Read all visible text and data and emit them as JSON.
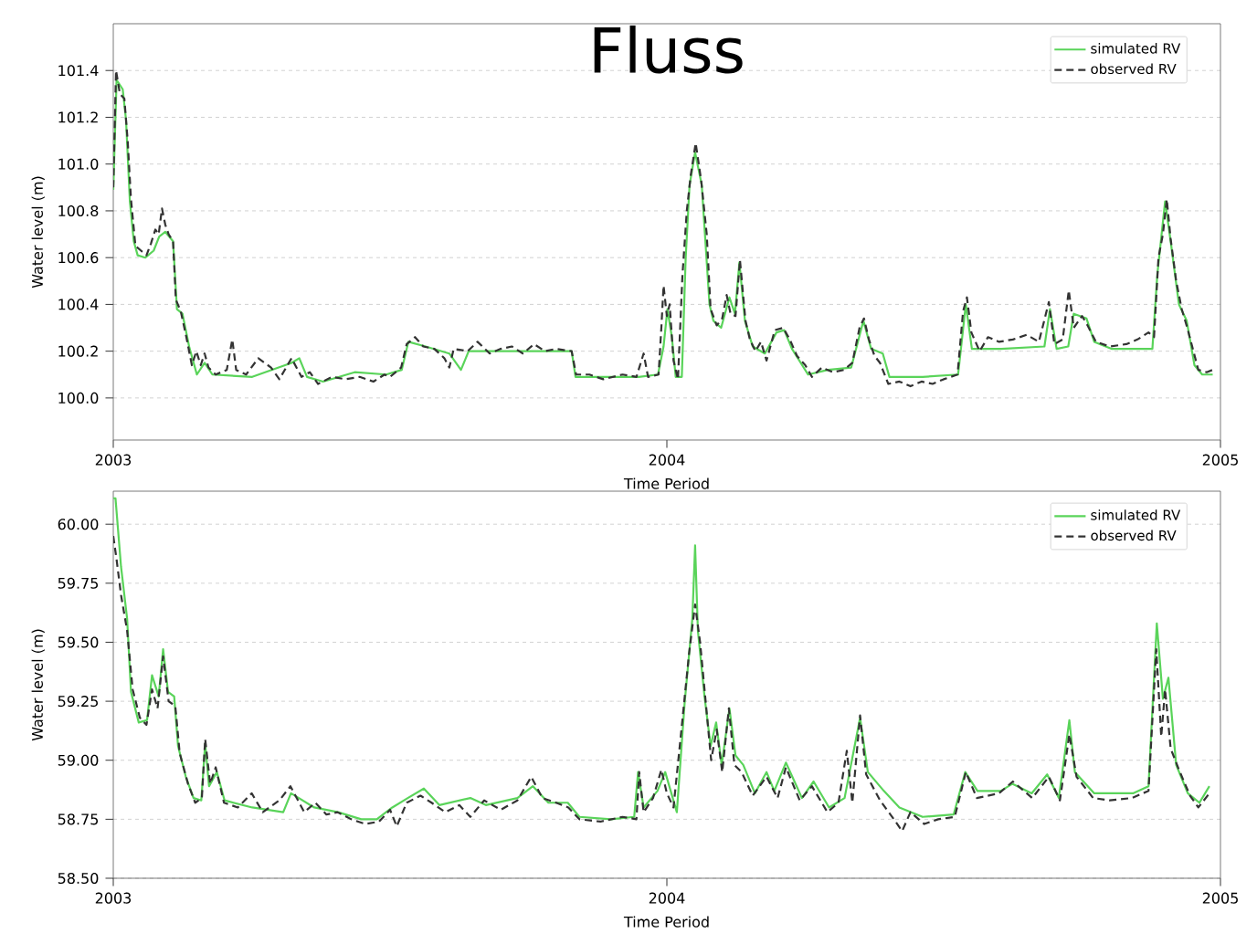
{
  "chart_data": [
    {
      "type": "line",
      "title": "Fluss",
      "xlabel": "Time Period",
      "ylabel": "Water level (m)",
      "xlim": [
        2003,
        2005
      ],
      "xticks": [
        2003,
        2004,
        2005
      ],
      "ylim": [
        99.82,
        101.6
      ],
      "yticks": [
        {
          "value": 100.0,
          "label": "100.0"
        },
        {
          "value": 100.2,
          "label": "100.2"
        },
        {
          "value": 100.4,
          "label": "100.4"
        },
        {
          "value": 100.6,
          "label": "100.6"
        },
        {
          "value": 100.8,
          "label": "100.8"
        },
        {
          "value": 101.0,
          "label": "101.0"
        },
        {
          "value": 101.2,
          "label": "101.2"
        },
        {
          "value": 101.4,
          "label": "101.4"
        }
      ],
      "grid": "y",
      "legend": "top right",
      "marker": "none",
      "series": [
        {
          "name": "simulated RV",
          "color": "#5ad45a",
          "line_style": "solid",
          "x": [
            2003.0,
            2003.006,
            2003.017,
            2003.023,
            2003.03,
            2003.037,
            2003.044,
            2003.058,
            2003.073,
            2003.083,
            2003.094,
            2003.108,
            2003.115,
            2003.125,
            2003.137,
            2003.151,
            2003.165,
            2003.179,
            2003.251,
            2003.322,
            2003.336,
            2003.35,
            2003.379,
            2003.436,
            2003.493,
            2003.521,
            2003.533,
            2003.564,
            2003.607,
            2003.628,
            2003.642,
            2003.749,
            2003.828,
            2003.835,
            2003.892,
            2003.949,
            2003.984,
            2003.994,
            2004.001,
            2004.009,
            2004.016,
            2004.027,
            2004.034,
            2004.041,
            2004.051,
            2004.063,
            2004.077,
            2004.084,
            2004.098,
            2004.113,
            2004.123,
            2004.131,
            2004.141,
            2004.155,
            2004.177,
            2004.198,
            2004.212,
            2004.226,
            2004.255,
            2004.291,
            2004.333,
            2004.355,
            2004.369,
            2004.39,
            2004.402,
            2004.462,
            2004.526,
            2004.54,
            2004.551,
            2004.604,
            2004.682,
            2004.692,
            2004.704,
            2004.725,
            2004.735,
            2004.758,
            2004.772,
            2004.803,
            2004.877,
            2004.886,
            2004.9,
            2004.91,
            2004.925,
            2004.939,
            2004.953,
            2004.967,
            2004.986
          ],
          "values": [
            100.89,
            101.36,
            101.32,
            101.19,
            100.84,
            100.67,
            100.61,
            100.6,
            100.63,
            100.69,
            100.71,
            100.67,
            100.38,
            100.36,
            100.22,
            100.1,
            100.15,
            100.1,
            100.09,
            100.15,
            100.17,
            100.09,
            100.07,
            100.11,
            100.1,
            100.12,
            100.24,
            100.22,
            100.19,
            100.12,
            100.2,
            100.2,
            100.2,
            100.09,
            100.09,
            100.09,
            100.1,
            100.22,
            100.38,
            100.26,
            100.09,
            100.09,
            100.6,
            100.91,
            101.05,
            100.91,
            100.4,
            100.33,
            100.3,
            100.43,
            100.36,
            100.58,
            100.33,
            100.22,
            100.19,
            100.28,
            100.29,
            100.21,
            100.1,
            100.12,
            100.13,
            100.33,
            100.21,
            100.19,
            100.09,
            100.09,
            100.1,
            100.4,
            100.21,
            100.21,
            100.22,
            100.38,
            100.21,
            100.22,
            100.36,
            100.34,
            100.24,
            100.21,
            100.21,
            100.53,
            100.84,
            100.67,
            100.4,
            100.33,
            100.14,
            100.1,
            100.1
          ]
        },
        {
          "name": "observed RV",
          "color": "#333333",
          "line_style": "dashed",
          "x": [
            2003.0,
            2003.005,
            2003.012,
            2003.02,
            2003.026,
            2003.032,
            2003.04,
            2003.05,
            2003.06,
            2003.068,
            2003.076,
            2003.082,
            2003.088,
            2003.094,
            2003.1,
            2003.108,
            2003.113,
            2003.122,
            2003.132,
            2003.142,
            2003.15,
            2003.158,
            2003.165,
            2003.172,
            2003.185,
            2003.205,
            2003.215,
            2003.222,
            2003.24,
            2003.262,
            2003.285,
            2003.3,
            2003.322,
            2003.34,
            2003.355,
            2003.37,
            2003.395,
            2003.42,
            2003.445,
            2003.47,
            2003.49,
            2003.5,
            2003.52,
            2003.53,
            2003.545,
            2003.56,
            2003.58,
            2003.598,
            2003.607,
            2003.615,
            2003.64,
            2003.658,
            2003.68,
            2003.7,
            2003.72,
            2003.74,
            2003.76,
            2003.78,
            2003.8,
            2003.828,
            2003.836,
            2003.86,
            2003.885,
            2003.92,
            2003.945,
            2003.958,
            2003.966,
            2003.985,
            2003.99,
            2003.994,
            2004.0,
            2004.005,
            2004.012,
            2004.02,
            2004.028,
            2004.036,
            2004.043,
            2004.052,
            2004.062,
            2004.072,
            2004.079,
            2004.09,
            2004.1,
            2004.108,
            2004.115,
            2004.124,
            2004.132,
            2004.142,
            2004.15,
            2004.16,
            2004.17,
            2004.18,
            2004.195,
            2004.21,
            2004.222,
            2004.235,
            2004.25,
            2004.262,
            2004.28,
            2004.3,
            2004.32,
            2004.335,
            2004.348,
            2004.356,
            2004.365,
            2004.375,
            2004.385,
            2004.4,
            2004.42,
            2004.44,
            2004.46,
            2004.48,
            2004.5,
            2004.525,
            2004.535,
            2004.542,
            2004.55,
            2004.565,
            2004.58,
            2004.6,
            2004.625,
            2004.65,
            2004.672,
            2004.69,
            2004.7,
            2004.715,
            2004.726,
            2004.735,
            2004.75,
            2004.76,
            2004.775,
            2004.8,
            2004.83,
            2004.85,
            2004.87,
            2004.88,
            2004.888,
            2004.896,
            2004.903,
            2004.91,
            2004.92,
            2004.93,
            2004.94,
            2004.95,
            2004.96,
            2004.975,
            2004.986
          ],
          "values": [
            100.9,
            101.4,
            101.3,
            101.28,
            101.1,
            100.85,
            100.65,
            100.63,
            100.61,
            100.66,
            100.72,
            100.7,
            100.81,
            100.74,
            100.7,
            100.67,
            100.42,
            100.37,
            100.26,
            100.14,
            100.2,
            100.14,
            100.19,
            100.13,
            100.1,
            100.12,
            100.25,
            100.12,
            100.1,
            100.17,
            100.13,
            100.08,
            100.17,
            100.09,
            100.11,
            100.06,
            100.09,
            100.08,
            100.09,
            100.07,
            100.1,
            100.09,
            100.13,
            100.23,
            100.26,
            100.22,
            100.21,
            100.17,
            100.13,
            100.21,
            100.2,
            100.24,
            100.19,
            100.21,
            100.22,
            100.19,
            100.23,
            100.2,
            100.21,
            100.2,
            100.1,
            100.1,
            100.08,
            100.1,
            100.09,
            100.19,
            100.09,
            100.1,
            100.3,
            100.48,
            100.35,
            100.4,
            100.16,
            100.08,
            100.52,
            100.8,
            100.95,
            101.09,
            100.93,
            100.7,
            100.38,
            100.31,
            100.34,
            100.44,
            100.36,
            100.35,
            100.59,
            100.33,
            100.25,
            100.2,
            100.24,
            100.16,
            100.29,
            100.3,
            100.25,
            100.18,
            100.14,
            100.09,
            100.13,
            100.11,
            100.12,
            100.15,
            100.3,
            100.34,
            100.25,
            100.18,
            100.15,
            100.06,
            100.07,
            100.05,
            100.07,
            100.06,
            100.08,
            100.1,
            100.37,
            100.43,
            100.28,
            100.2,
            100.26,
            100.24,
            100.25,
            100.27,
            100.24,
            100.41,
            100.23,
            100.25,
            100.46,
            100.3,
            100.35,
            100.31,
            100.24,
            100.22,
            100.23,
            100.25,
            100.28,
            100.26,
            100.6,
            100.7,
            100.85,
            100.68,
            100.5,
            100.38,
            100.3,
            100.21,
            100.12,
            100.11,
            100.12
          ]
        }
      ]
    },
    {
      "type": "line",
      "xlabel": "Time Period",
      "ylabel": "Water level (m)",
      "xlim": [
        2003,
        2005
      ],
      "xticks": [
        2003,
        2004,
        2005
      ],
      "ylim": [
        58.5,
        60.14
      ],
      "yticks": [
        {
          "value": 58.5,
          "label": "58.50"
        },
        {
          "value": 58.75,
          "label": "58.75"
        },
        {
          "value": 59.0,
          "label": "59.00"
        },
        {
          "value": 59.25,
          "label": "59.25"
        },
        {
          "value": 59.5,
          "label": "59.50"
        },
        {
          "value": 59.75,
          "label": "59.75"
        },
        {
          "value": 60.0,
          "label": "60.00"
        }
      ],
      "grid": "y",
      "legend": "top right",
      "marker": "none",
      "series": [
        {
          "name": "simulated RV",
          "color": "#5ad45a",
          "line_style": "solid",
          "x": [
            2003.0,
            2003.004,
            2003.014,
            2003.025,
            2003.032,
            2003.046,
            2003.061,
            2003.07,
            2003.082,
            2003.09,
            2003.099,
            2003.11,
            2003.117,
            2003.131,
            2003.145,
            2003.159,
            2003.166,
            2003.173,
            2003.187,
            2003.201,
            2003.251,
            2003.307,
            2003.321,
            2003.363,
            2003.406,
            2003.448,
            2003.476,
            2003.504,
            2003.532,
            2003.561,
            2003.589,
            2003.645,
            2003.673,
            2003.73,
            2003.758,
            2003.786,
            2003.821,
            2003.842,
            2003.899,
            2003.941,
            2003.948,
            2003.958,
            2003.983,
            2003.997,
            2004.018,
            2004.032,
            2004.046,
            2004.051,
            2004.056,
            2004.068,
            2004.079,
            2004.089,
            2004.099,
            2004.113,
            2004.124,
            2004.138,
            2004.159,
            2004.18,
            2004.194,
            2004.215,
            2004.244,
            2004.265,
            2004.293,
            2004.321,
            2004.349,
            2004.363,
            2004.392,
            2004.42,
            2004.462,
            2004.518,
            2004.539,
            2004.561,
            2004.603,
            2004.624,
            2004.659,
            2004.687,
            2004.708,
            2004.727,
            2004.737,
            2004.772,
            2004.842,
            2004.87,
            2004.885,
            2004.896,
            2004.906,
            2004.92,
            2004.941,
            2004.962,
            2004.98
          ],
          "values": [
            60.11,
            60.11,
            59.82,
            59.6,
            59.29,
            59.16,
            59.17,
            59.36,
            59.27,
            59.47,
            59.29,
            59.27,
            59.06,
            58.93,
            58.84,
            58.83,
            59.07,
            58.89,
            58.95,
            58.83,
            58.8,
            58.78,
            58.86,
            58.8,
            58.78,
            58.75,
            58.75,
            58.8,
            58.84,
            58.88,
            58.81,
            58.84,
            58.81,
            58.84,
            58.89,
            58.82,
            58.82,
            58.76,
            58.75,
            58.76,
            58.95,
            58.8,
            58.87,
            58.95,
            58.78,
            59.24,
            59.6,
            59.91,
            59.55,
            59.27,
            59.06,
            59.16,
            58.98,
            59.22,
            59.02,
            58.98,
            58.86,
            58.95,
            58.87,
            58.99,
            58.84,
            58.91,
            58.8,
            58.84,
            59.18,
            58.95,
            58.87,
            58.8,
            58.76,
            58.77,
            58.95,
            58.87,
            58.87,
            58.9,
            58.86,
            58.94,
            58.84,
            59.17,
            58.95,
            58.86,
            58.86,
            58.89,
            59.58,
            59.26,
            59.35,
            58.98,
            58.86,
            58.82,
            58.89
          ]
        },
        {
          "name": "observed RV",
          "color": "#333333",
          "line_style": "dashed",
          "x": [
            2003.0,
            2003.006,
            2003.014,
            2003.025,
            2003.035,
            2003.048,
            2003.06,
            2003.07,
            2003.08,
            2003.09,
            2003.1,
            2003.112,
            2003.12,
            2003.135,
            2003.148,
            2003.16,
            2003.166,
            2003.175,
            2003.185,
            2003.2,
            2003.225,
            2003.25,
            2003.27,
            2003.3,
            2003.32,
            2003.345,
            2003.365,
            2003.385,
            2003.405,
            2003.43,
            2003.455,
            2003.48,
            2003.5,
            2003.512,
            2003.53,
            2003.555,
            2003.575,
            2003.6,
            2003.625,
            2003.645,
            2003.67,
            2003.7,
            2003.73,
            2003.755,
            2003.775,
            2003.8,
            2003.822,
            2003.842,
            2003.88,
            2003.92,
            2003.945,
            2003.95,
            2003.958,
            2003.975,
            2003.99,
            2004.0,
            2004.012,
            2004.025,
            2004.04,
            2004.051,
            2004.06,
            2004.07,
            2004.08,
            2004.09,
            2004.1,
            2004.112,
            2004.122,
            2004.135,
            2004.155,
            2004.18,
            2004.2,
            2004.215,
            2004.24,
            2004.262,
            2004.29,
            2004.31,
            2004.325,
            2004.335,
            2004.349,
            2004.36,
            2004.385,
            2004.41,
            2004.425,
            2004.44,
            2004.465,
            2004.49,
            2004.52,
            2004.54,
            2004.56,
            2004.6,
            2004.625,
            2004.66,
            2004.69,
            2004.71,
            2004.727,
            2004.74,
            2004.77,
            2004.8,
            2004.84,
            2004.87,
            2004.884,
            2004.893,
            2004.9,
            2004.91,
            2004.925,
            2004.945,
            2004.96,
            2004.98
          ],
          "values": [
            59.95,
            59.85,
            59.7,
            59.55,
            59.3,
            59.18,
            59.15,
            59.3,
            59.22,
            59.44,
            59.25,
            59.23,
            59.03,
            58.9,
            58.82,
            58.84,
            59.09,
            58.9,
            58.97,
            58.82,
            58.8,
            58.86,
            58.78,
            58.83,
            58.89,
            58.78,
            58.82,
            58.77,
            58.78,
            58.75,
            58.73,
            58.74,
            58.79,
            58.72,
            58.82,
            58.85,
            58.82,
            58.78,
            58.81,
            58.76,
            58.83,
            58.79,
            58.83,
            58.93,
            58.84,
            58.82,
            58.8,
            58.75,
            58.74,
            58.76,
            58.75,
            58.95,
            58.78,
            58.84,
            58.96,
            58.86,
            58.8,
            59.1,
            59.45,
            59.66,
            59.5,
            59.25,
            59.0,
            59.13,
            58.95,
            59.22,
            58.98,
            58.95,
            58.85,
            58.93,
            58.84,
            58.97,
            58.83,
            58.89,
            58.78,
            58.82,
            59.04,
            58.82,
            59.19,
            58.94,
            58.83,
            58.75,
            58.7,
            58.78,
            58.73,
            58.75,
            58.76,
            58.95,
            58.84,
            58.86,
            58.91,
            58.84,
            58.93,
            58.83,
            59.11,
            58.93,
            58.84,
            58.83,
            58.84,
            58.87,
            59.47,
            59.1,
            59.3,
            59.05,
            58.96,
            58.85,
            58.8,
            58.86
          ]
        }
      ]
    }
  ]
}
